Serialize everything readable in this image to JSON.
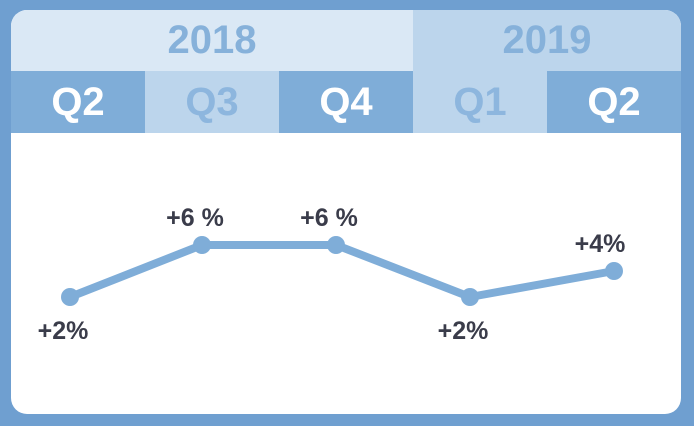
{
  "header": {
    "years": [
      {
        "label": "2018",
        "span": 3
      },
      {
        "label": "2019",
        "span": 2
      }
    ],
    "quarters": [
      {
        "label": "Q2",
        "style": "dark"
      },
      {
        "label": "Q3",
        "style": "light"
      },
      {
        "label": "Q4",
        "style": "dark"
      },
      {
        "label": "Q1",
        "style": "light"
      },
      {
        "label": "Q2",
        "style": "dark"
      }
    ]
  },
  "colors": {
    "line": "#7fadd8",
    "marker": "#7fadd8",
    "label": "#3a3c4a",
    "background": "#6f9fd0"
  },
  "chart_data": {
    "type": "line",
    "categories": [
      "2018 Q2",
      "2018 Q3",
      "2018 Q4",
      "2019 Q1",
      "2019 Q2"
    ],
    "values": [
      2,
      6,
      6,
      2,
      4
    ],
    "data_labels": [
      "+2%",
      "+6 %",
      "+6 %",
      "+2%",
      "+4%"
    ],
    "label_positions": [
      "below",
      "above",
      "above",
      "below",
      "above"
    ],
    "title": "",
    "xlabel": "",
    "ylabel": "",
    "ylim": [
      0,
      10
    ],
    "grid": false
  }
}
